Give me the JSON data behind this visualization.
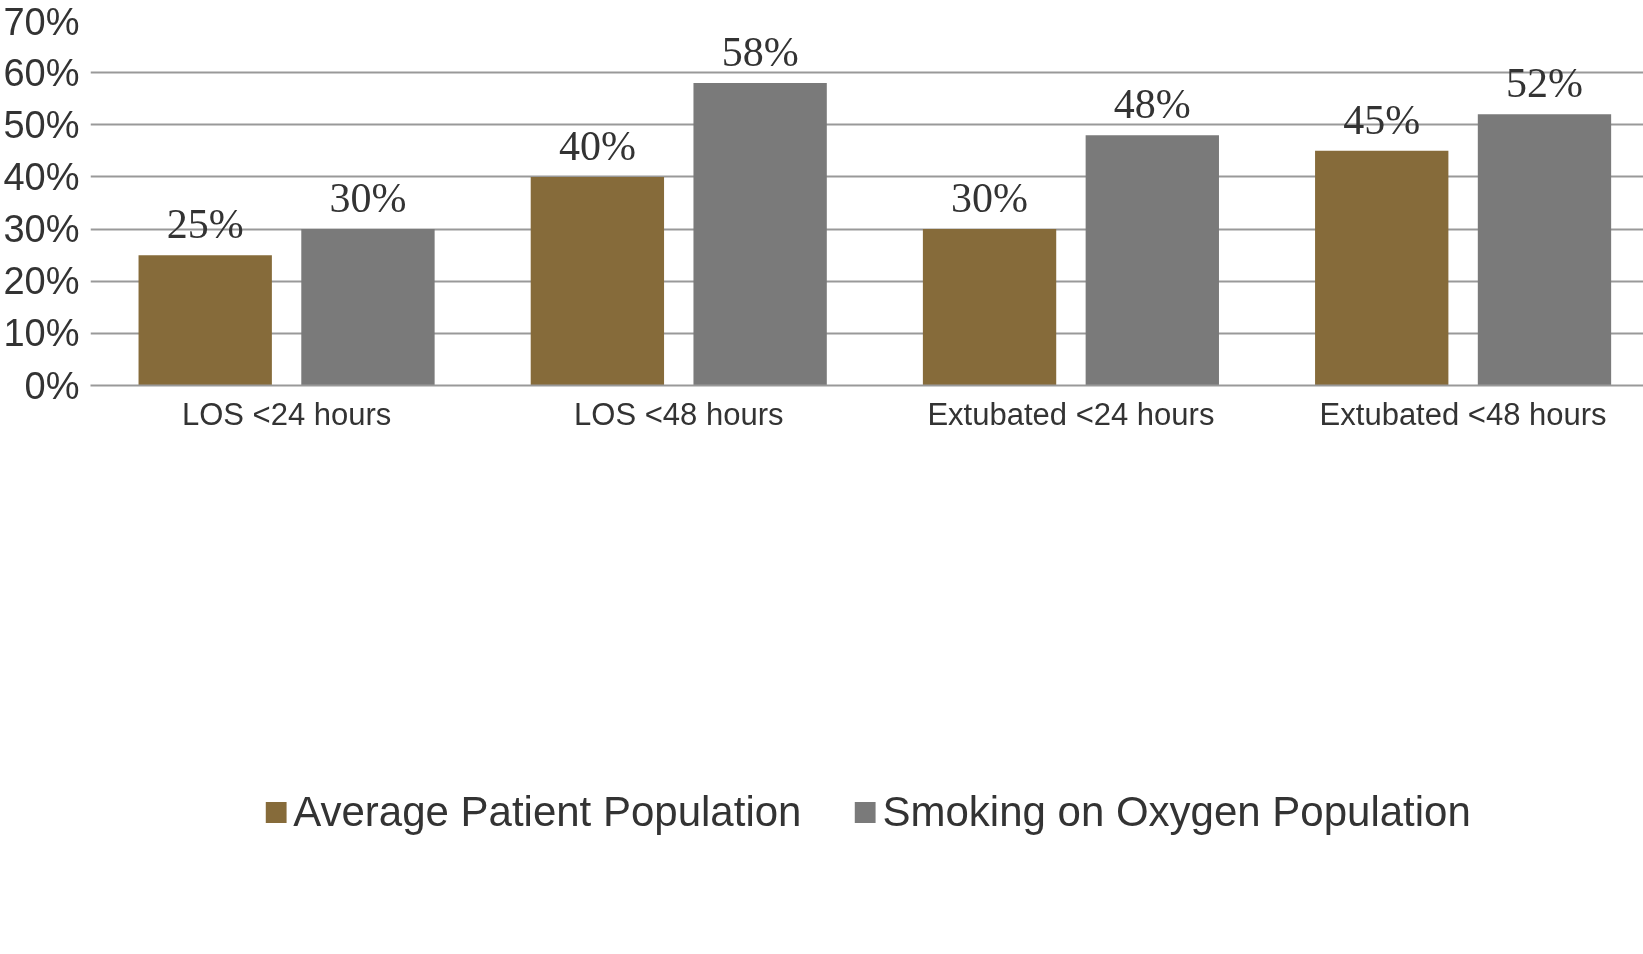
{
  "chart_data": {
    "type": "bar",
    "categories": [
      "LOS <24 hours",
      "LOS <48 hours",
      "Extubated <24 hours",
      "Extubated <48 hours"
    ],
    "series": [
      {
        "name": "Average Patient Population",
        "color": "#866b3a",
        "values": [
          25,
          40,
          30,
          45
        ],
        "value_labels": [
          "25%",
          "40%",
          "30%",
          "45%"
        ]
      },
      {
        "name": "Smoking on Oxygen Population",
        "color": "#7a7a7a",
        "values": [
          30,
          58,
          48,
          52
        ],
        "value_labels": [
          "30%",
          "58%",
          "48%",
          "52%"
        ]
      }
    ],
    "ylim": [
      0,
      70
    ],
    "yticks": [
      {
        "value": 0,
        "label": "0%"
      },
      {
        "value": 10,
        "label": "10%"
      },
      {
        "value": 20,
        "label": "20%"
      },
      {
        "value": 30,
        "label": "30%"
      },
      {
        "value": 40,
        "label": "40%"
      },
      {
        "value": 50,
        "label": "50%"
      },
      {
        "value": 60,
        "label": "60%"
      },
      {
        "value": 70,
        "label": "70%"
      }
    ],
    "grid": "y",
    "legend": "bottom"
  }
}
